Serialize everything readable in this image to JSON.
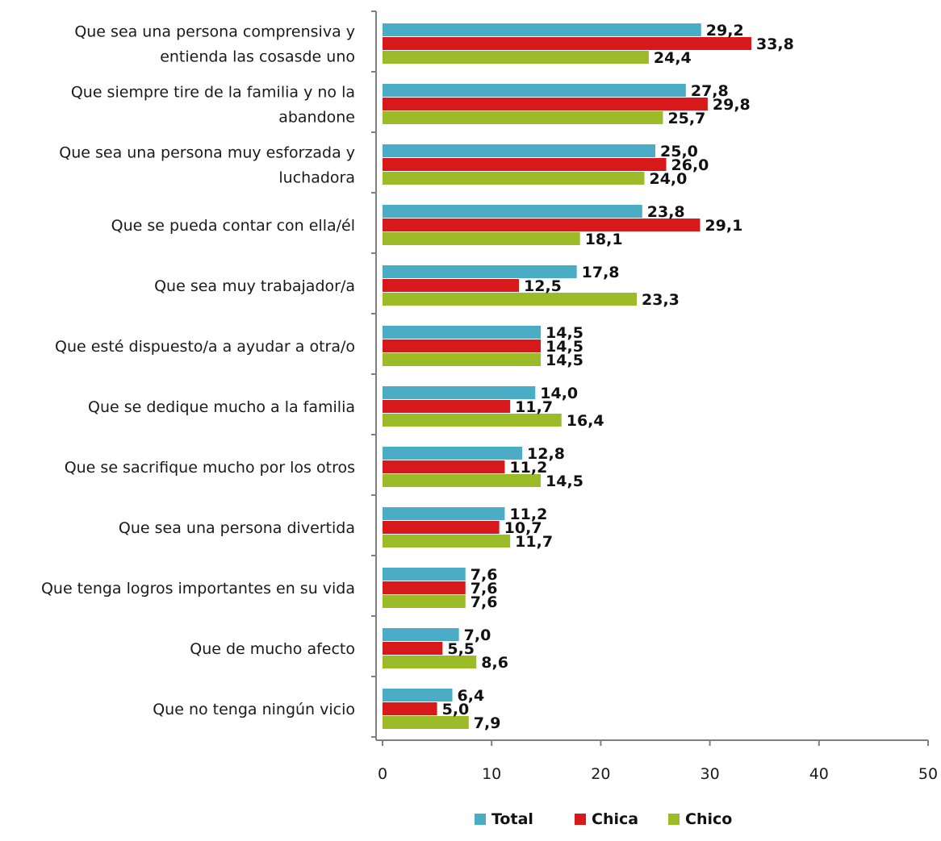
{
  "chart_data": {
    "type": "bar",
    "orientation": "horizontal",
    "title": "",
    "xlabel": "",
    "ylabel": "",
    "xlim": [
      0,
      50
    ],
    "x_ticks": [
      0,
      10,
      20,
      30,
      40,
      50
    ],
    "grid": false,
    "legend_position": "bottom",
    "categories": [
      [
        "Que sea una persona comprensiva y",
        "entienda las cosasde uno"
      ],
      [
        "Que siempre tire de la familia y no la",
        "abandone"
      ],
      [
        "Que sea una persona muy esforzada y",
        "luchadora"
      ],
      [
        "Que se pueda contar con ella/él"
      ],
      [
        "Que sea muy trabajador/a"
      ],
      [
        "Que esté dispuesto/a a ayudar a otra/o"
      ],
      [
        "Que se dedique mucho a la familia"
      ],
      [
        "Que se sacrifique mucho por los otros"
      ],
      [
        "Que sea una persona divertida"
      ],
      [
        "Que tenga logros importantes en su vida"
      ],
      [
        "Que de mucho afecto"
      ],
      [
        "Que no tenga ningún vicio"
      ]
    ],
    "series": [
      {
        "name": "Total",
        "color": "#4bacc6",
        "values": [
          29.2,
          27.8,
          25.0,
          23.8,
          17.8,
          14.5,
          14.0,
          12.8,
          11.2,
          7.6,
          7.0,
          6.4
        ],
        "labels": [
          "29,2",
          "27,8",
          "25,0",
          "23,8",
          "17,8",
          "14,5",
          "14,0",
          "12,8",
          "11,2",
          "7,6",
          "7,0",
          "6,4"
        ]
      },
      {
        "name": "Chica",
        "color": "#d7191c",
        "values": [
          33.8,
          29.8,
          26.0,
          29.1,
          12.5,
          14.5,
          11.7,
          11.2,
          10.7,
          7.6,
          5.5,
          5.0
        ],
        "labels": [
          "33,8",
          "29,8",
          "26,0",
          "29,1",
          "12,5",
          "14,5",
          "11,7",
          "11,2",
          "10,7",
          "7,6",
          "5,5",
          "5,0"
        ]
      },
      {
        "name": "Chico",
        "color": "#9bbb29",
        "values": [
          24.4,
          25.7,
          24.0,
          18.1,
          23.3,
          14.5,
          16.4,
          14.5,
          11.7,
          7.6,
          8.6,
          7.9
        ],
        "labels": [
          "24,4",
          "25,7",
          "24,0",
          "18,1",
          "23,3",
          "14,5",
          "16,4",
          "14,5",
          "11,7",
          "7,6",
          "8,6",
          "7,9"
        ]
      }
    ]
  }
}
